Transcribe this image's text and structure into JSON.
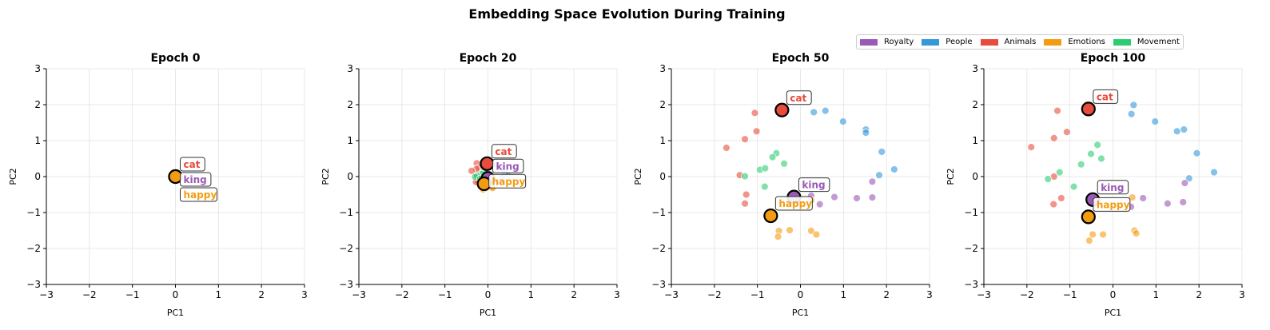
{
  "title": "Embedding Space Evolution During Training",
  "legend": [
    {
      "label": "Royalty",
      "color": "#9b59b6"
    },
    {
      "label": "People",
      "color": "#3498db"
    },
    {
      "label": "Animals",
      "color": "#e74c3c"
    },
    {
      "label": "Emotions",
      "color": "#f39c12"
    },
    {
      "label": "Movement",
      "color": "#2ecc71"
    }
  ],
  "chart_data": [
    {
      "type": "scatter",
      "title": "Epoch 0",
      "xlabel": "PC1",
      "ylabel": "PC2",
      "xlim": [
        -3,
        3
      ],
      "ylim": [
        -3,
        3
      ],
      "ticks": [
        -3,
        -2,
        -1,
        0,
        1,
        2,
        3
      ],
      "grid": true,
      "series": [
        {
          "category": "Animals",
          "points": [
            [
              0,
              0
            ]
          ]
        },
        {
          "category": "People",
          "points": [
            [
              0,
              0
            ]
          ]
        },
        {
          "category": "Movement",
          "points": [
            [
              0,
              0
            ]
          ]
        },
        {
          "category": "Royalty",
          "points": [
            [
              0,
              0
            ]
          ]
        },
        {
          "category": "Emotions",
          "points": [
            [
              0,
              0
            ]
          ]
        }
      ],
      "highlights": [
        {
          "word": "cat",
          "category": "Animals",
          "x": 0,
          "y": 0
        },
        {
          "word": "king",
          "category": "Royalty",
          "x": 0,
          "y": 0
        },
        {
          "word": "happy",
          "category": "Emotions",
          "x": 0,
          "y": 0
        }
      ]
    },
    {
      "type": "scatter",
      "title": "Epoch 20",
      "xlabel": "PC1",
      "ylabel": "PC2",
      "xlim": [
        -3,
        3
      ],
      "ylim": [
        -3,
        3
      ],
      "ticks": [
        -3,
        -2,
        -1,
        0,
        1,
        2,
        3
      ],
      "grid": true,
      "series": [
        {
          "category": "Animals",
          "points": [
            [
              -0.26,
              0.37
            ],
            [
              -0.21,
              0.25
            ],
            [
              -0.27,
              0.21
            ],
            [
              -0.38,
              0.16
            ],
            [
              -0.27,
              0.0
            ],
            [
              -0.24,
              -0.12
            ],
            [
              -0.28,
              -0.15
            ]
          ]
        },
        {
          "category": "People",
          "points": [
            [
              0.1,
              0.4
            ],
            [
              0.09,
              0.35
            ],
            [
              0.2,
              0.31
            ],
            [
              0.3,
              0.25
            ],
            [
              0.33,
              0.26
            ],
            [
              0.39,
              0.13
            ],
            [
              0.35,
              -0.01
            ],
            [
              0.47,
              0.02
            ]
          ]
        },
        {
          "category": "Movement",
          "points": [
            [
              -0.07,
              0.18
            ],
            [
              -0.1,
              0.13
            ],
            [
              -0.05,
              0.1
            ],
            [
              -0.15,
              0.07
            ],
            [
              -0.25,
              0.02
            ],
            [
              -0.3,
              -0.01
            ],
            [
              -0.18,
              -0.06
            ]
          ]
        },
        {
          "category": "Royalty",
          "points": [
            [
              0.33,
              -0.04
            ],
            [
              0.14,
              -0.12
            ],
            [
              0.25,
              -0.15
            ],
            [
              0.33,
              -0.14
            ],
            [
              0.08,
              -0.17
            ]
          ]
        },
        {
          "category": "Emotions",
          "points": [
            [
              -0.09,
              -0.32
            ],
            [
              -0.11,
              -0.36
            ],
            [
              -0.05,
              -0.32
            ],
            [
              0.1,
              -0.3
            ],
            [
              0.11,
              -0.32
            ],
            [
              0.09,
              -0.12
            ]
          ]
        }
      ],
      "highlights": [
        {
          "word": "cat",
          "category": "Animals",
          "x": -0.02,
          "y": 0.36
        },
        {
          "word": "king",
          "category": "Royalty",
          "x": 0.0,
          "y": -0.05
        },
        {
          "word": "happy",
          "category": "Emotions",
          "x": -0.09,
          "y": -0.2
        }
      ]
    },
    {
      "type": "scatter",
      "title": "Epoch 50",
      "xlabel": "PC1",
      "ylabel": "PC2",
      "xlim": [
        -3,
        3
      ],
      "ylim": [
        -3,
        3
      ],
      "ticks": [
        -3,
        -2,
        -1,
        0,
        1,
        2,
        3
      ],
      "grid": true,
      "series": [
        {
          "category": "Animals",
          "points": [
            [
              -1.06,
              1.77
            ],
            [
              -1.02,
              1.26
            ],
            [
              -1.29,
              1.04
            ],
            [
              -1.72,
              0.8
            ],
            [
              -1.41,
              0.04
            ],
            [
              -1.26,
              -0.5
            ],
            [
              -1.29,
              -0.75
            ]
          ]
        },
        {
          "category": "People",
          "points": [
            [
              0.31,
              1.79
            ],
            [
              0.58,
              1.83
            ],
            [
              0.99,
              1.53
            ],
            [
              1.52,
              1.31
            ],
            [
              1.52,
              1.22
            ],
            [
              1.89,
              0.69
            ],
            [
              1.83,
              0.04
            ],
            [
              2.18,
              0.2
            ]
          ]
        },
        {
          "category": "Movement",
          "points": [
            [
              -0.56,
              0.65
            ],
            [
              -0.65,
              0.54
            ],
            [
              -0.38,
              0.36
            ],
            [
              -0.94,
              0.19
            ],
            [
              -0.82,
              0.23
            ],
            [
              -1.29,
              0.01
            ],
            [
              -0.83,
              -0.28
            ]
          ]
        },
        {
          "category": "Royalty",
          "points": [
            [
              1.67,
              -0.14
            ],
            [
              0.79,
              -0.57
            ],
            [
              1.31,
              -0.6
            ],
            [
              1.67,
              -0.58
            ],
            [
              0.45,
              -0.77
            ],
            [
              0.25,
              -0.53
            ]
          ]
        },
        {
          "category": "Emotions",
          "points": [
            [
              -0.5,
              -1.51
            ],
            [
              -0.52,
              -1.67
            ],
            [
              -0.25,
              -1.49
            ],
            [
              0.25,
              -1.51
            ],
            [
              0.37,
              -1.61
            ],
            [
              0.25,
              -0.66
            ]
          ]
        }
      ],
      "highlights": [
        {
          "word": "cat",
          "category": "Animals",
          "x": -0.43,
          "y": 1.85
        },
        {
          "word": "king",
          "category": "Royalty",
          "x": -0.15,
          "y": -0.57
        },
        {
          "word": "happy",
          "category": "Emotions",
          "x": -0.69,
          "y": -1.09
        }
      ]
    },
    {
      "type": "scatter",
      "title": "Epoch 100",
      "xlabel": "PC1",
      "ylabel": "PC2",
      "xlim": [
        -3,
        3
      ],
      "ylim": [
        -3,
        3
      ],
      "ticks": [
        -3,
        -2,
        -1,
        0,
        1,
        2,
        3
      ],
      "grid": true,
      "series": [
        {
          "category": "Animals",
          "points": [
            [
              -1.29,
              1.83
            ],
            [
              -1.07,
              1.24
            ],
            [
              -1.37,
              1.07
            ],
            [
              -1.9,
              0.82
            ],
            [
              -1.37,
              0.0
            ],
            [
              -1.2,
              -0.6
            ],
            [
              -1.38,
              -0.77
            ]
          ]
        },
        {
          "category": "People",
          "points": [
            [
              0.48,
              1.99
            ],
            [
              0.43,
              1.74
            ],
            [
              0.98,
              1.53
            ],
            [
              1.49,
              1.26
            ],
            [
              1.65,
              1.31
            ],
            [
              1.95,
              0.65
            ],
            [
              1.77,
              -0.05
            ],
            [
              2.35,
              0.12
            ]
          ]
        },
        {
          "category": "Movement",
          "points": [
            [
              -0.36,
              0.88
            ],
            [
              -0.51,
              0.63
            ],
            [
              -0.27,
              0.5
            ],
            [
              -0.74,
              0.34
            ],
            [
              -1.24,
              0.12
            ],
            [
              -1.51,
              -0.07
            ],
            [
              -0.91,
              -0.28
            ]
          ]
        },
        {
          "category": "Royalty",
          "points": [
            [
              1.67,
              -0.18
            ],
            [
              0.7,
              -0.6
            ],
            [
              1.27,
              -0.75
            ],
            [
              1.63,
              -0.71
            ],
            [
              0.42,
              -0.84
            ]
          ]
        },
        {
          "category": "Emotions",
          "points": [
            [
              -0.47,
              -1.61
            ],
            [
              -0.55,
              -1.78
            ],
            [
              -0.23,
              -1.61
            ],
            [
              0.5,
              -1.5
            ],
            [
              0.54,
              -1.58
            ],
            [
              0.45,
              -0.58
            ]
          ]
        }
      ],
      "highlights": [
        {
          "word": "cat",
          "category": "Animals",
          "x": -0.57,
          "y": 1.88
        },
        {
          "word": "king",
          "category": "Royalty",
          "x": -0.47,
          "y": -0.64
        },
        {
          "word": "happy",
          "category": "Emotions",
          "x": -0.57,
          "y": -1.12
        }
      ]
    }
  ]
}
